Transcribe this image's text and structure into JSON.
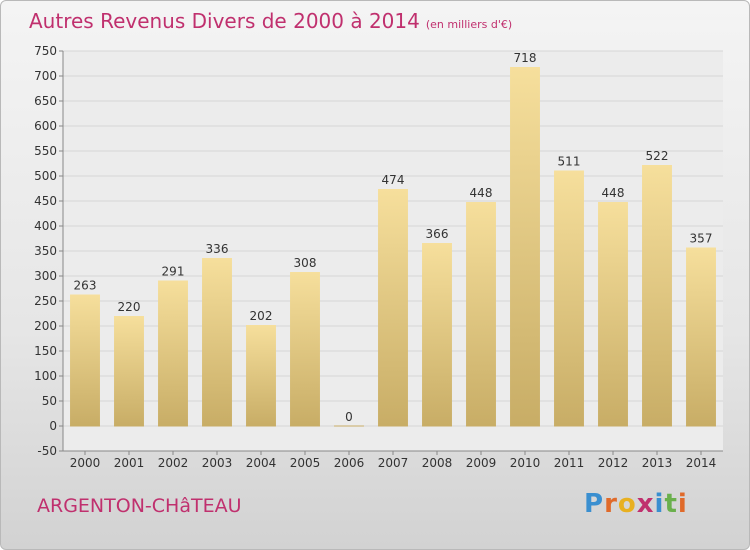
{
  "title": "Autres Revenus Divers de 2000 à 2014",
  "title_unit": "(en milliers d'€)",
  "place": "ARGENTON-CHâTEAU",
  "logo": {
    "letters": [
      {
        "ch": "P",
        "color": "#3a8fd0"
      },
      {
        "ch": "r",
        "color": "#e06a2a"
      },
      {
        "ch": "o",
        "color": "#e8b020"
      },
      {
        "ch": "x",
        "color": "#c0306e"
      },
      {
        "ch": "i",
        "color": "#3a8fd0"
      },
      {
        "ch": "t",
        "color": "#6ab04c"
      },
      {
        "ch": "i",
        "color": "#e06a2a"
      }
    ]
  },
  "chart_data": {
    "type": "bar",
    "categories": [
      "2000",
      "2001",
      "2002",
      "2003",
      "2004",
      "2005",
      "2006",
      "2007",
      "2008",
      "2009",
      "2010",
      "2011",
      "2012",
      "2013",
      "2014"
    ],
    "values": [
      263,
      220,
      291,
      336,
      202,
      308,
      0,
      474,
      366,
      448,
      718,
      511,
      448,
      522,
      357
    ],
    "ylim": [
      -50,
      750
    ],
    "yticks": [
      -50,
      0,
      50,
      100,
      150,
      200,
      250,
      300,
      350,
      400,
      450,
      500,
      550,
      600,
      650,
      700,
      750
    ],
    "grid": true,
    "bar_color_top": "#f6df9c",
    "bar_color_bottom": "#c8ad66",
    "title_color": "#c0306e"
  }
}
